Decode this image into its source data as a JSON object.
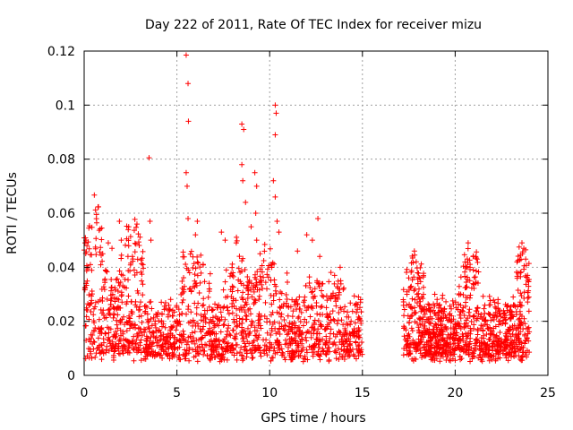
{
  "chart_data": {
    "type": "scatter",
    "title": "Day 222 of 2011, Rate Of TEC Index for receiver mizu",
    "xlabel": "GPS time / hours",
    "ylabel": "ROTI / TECUs",
    "xlim": [
      0,
      25
    ],
    "ylim": [
      0,
      0.12
    ],
    "xticks": [
      0,
      5,
      10,
      15,
      20,
      25
    ],
    "xtick_labels": [
      "0",
      "5",
      "10",
      "15",
      "20",
      "25"
    ],
    "yticks": [
      0,
      0.02,
      0.04,
      0.06,
      0.08,
      0.1,
      0.12
    ],
    "ytick_labels": [
      "0",
      "0.02",
      "0.04",
      "0.06",
      "0.08",
      "0.1",
      "0.12"
    ],
    "grid": true,
    "marker": "plus",
    "color": "#ff0000",
    "data_gap_hours": [
      15.0,
      17.2
    ],
    "series": [
      {
        "name": "ROTI",
        "points": [
          [
            0.05,
            0.049
          ],
          [
            0.1,
            0.05
          ],
          [
            0.15,
            0.048
          ],
          [
            0.2,
            0.04
          ],
          [
            0.1,
            0.034
          ],
          [
            1.0,
            0.045
          ],
          [
            1.3,
            0.049
          ],
          [
            1.5,
            0.047
          ],
          [
            1.9,
            0.057
          ],
          [
            2.0,
            0.05
          ],
          [
            2.4,
            0.055
          ],
          [
            2.6,
            0.044
          ],
          [
            3.5,
            0.0805
          ],
          [
            3.55,
            0.057
          ],
          [
            3.6,
            0.05
          ],
          [
            5.5,
            0.1185
          ],
          [
            5.6,
            0.108
          ],
          [
            5.62,
            0.094
          ],
          [
            5.5,
            0.075
          ],
          [
            5.55,
            0.07
          ],
          [
            5.6,
            0.058
          ],
          [
            6.1,
            0.057
          ],
          [
            6.0,
            0.052
          ],
          [
            7.4,
            0.053
          ],
          [
            7.6,
            0.05
          ],
          [
            8.2,
            0.049
          ],
          [
            8.5,
            0.093
          ],
          [
            8.6,
            0.091
          ],
          [
            8.5,
            0.078
          ],
          [
            8.55,
            0.072
          ],
          [
            8.7,
            0.064
          ],
          [
            9.0,
            0.055
          ],
          [
            9.2,
            0.075
          ],
          [
            9.3,
            0.07
          ],
          [
            9.25,
            0.06
          ],
          [
            9.3,
            0.05
          ],
          [
            10.3,
            0.1
          ],
          [
            10.35,
            0.097
          ],
          [
            10.3,
            0.089
          ],
          [
            10.2,
            0.072
          ],
          [
            10.3,
            0.066
          ],
          [
            10.4,
            0.057
          ],
          [
            10.5,
            0.053
          ],
          [
            11.5,
            0.046
          ],
          [
            12.0,
            0.052
          ],
          [
            12.3,
            0.05
          ],
          [
            12.6,
            0.058
          ],
          [
            12.7,
            0.044
          ],
          [
            13.5,
            0.037
          ],
          [
            13.8,
            0.04
          ],
          [
            14.6,
            0.026
          ],
          [
            14.9,
            0.028
          ],
          [
            17.2,
            0.028
          ],
          [
            17.4,
            0.03
          ],
          [
            17.8,
            0.046
          ],
          [
            17.9,
            0.042
          ],
          [
            18.1,
            0.036
          ],
          [
            18.6,
            0.026
          ],
          [
            18.9,
            0.03
          ],
          [
            19.2,
            0.02
          ],
          [
            19.5,
            0.018
          ],
          [
            19.8,
            0.022
          ],
          [
            20.3,
            0.03
          ],
          [
            20.7,
            0.049
          ],
          [
            20.8,
            0.04
          ],
          [
            21.1,
            0.034
          ],
          [
            21.6,
            0.026
          ],
          [
            22.4,
            0.02
          ],
          [
            22.8,
            0.024
          ],
          [
            23.2,
            0.026
          ],
          [
            23.6,
            0.049
          ],
          [
            23.7,
            0.047
          ],
          [
            23.8,
            0.043
          ],
          [
            23.9,
            0.037
          ]
        ]
      }
    ]
  }
}
